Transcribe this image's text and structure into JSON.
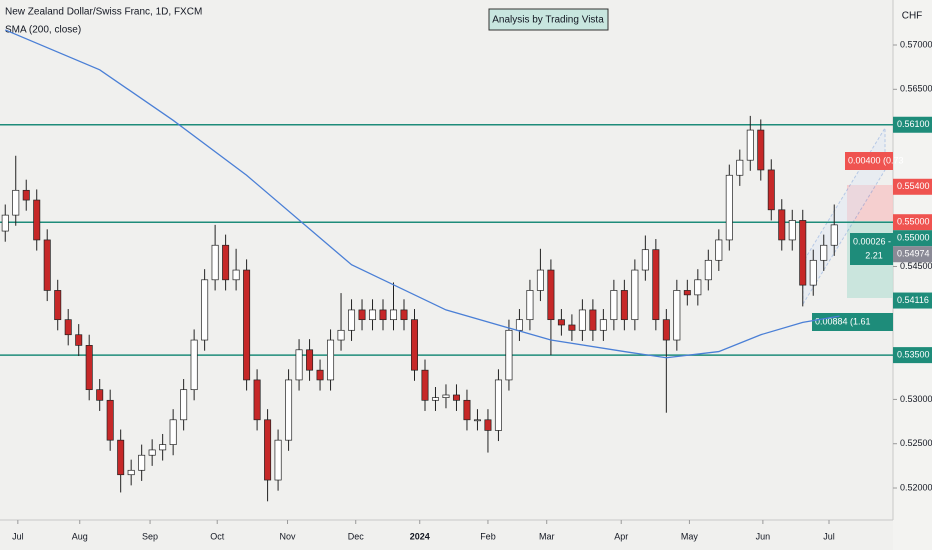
{
  "chart_data": {
    "type": "candlestick",
    "title": "New Zealand Dollar/Swiss Franc, 1D, FXCM",
    "subtitle": "SMA (200, close)",
    "annotation": "Analysis by Trading Vista",
    "currency": "CHF",
    "up_color": "#ffffff",
    "down_color": "#c62828",
    "open": [
      0.549,
      0.5508,
      0.5536,
      0.5525,
      0.548,
      0.5423,
      0.539,
      0.5373,
      0.5361,
      0.5311,
      0.5299,
      0.5254,
      0.5215,
      0.522,
      0.5237,
      0.5243,
      0.5249,
      0.5277,
      0.5311,
      0.5367,
      0.5435,
      0.5474,
      0.5435,
      0.5446,
      0.5322,
      0.5277,
      0.5209,
      0.5254,
      0.5322,
      0.5356,
      0.5333,
      0.5322,
      0.5367,
      0.5378,
      0.5401,
      0.539,
      0.5401,
      0.539,
      0.5401,
      0.539,
      0.5333,
      0.5299,
      0.5302,
      0.5305,
      0.5299,
      0.5277,
      0.5277,
      0.5265,
      0.5322,
      0.5378,
      0.539,
      0.5423,
      0.5446,
      0.539,
      0.5384,
      0.5378,
      0.5401,
      0.5378,
      0.539,
      0.5423,
      0.539,
      0.5446,
      0.5469,
      0.539,
      0.5367,
      0.5423,
      0.5418,
      0.5435,
      0.5457,
      0.548,
      0.5553,
      0.557,
      0.5604,
      0.5559,
      0.5514,
      0.548,
      0.5502,
      0.5429,
      0.5457,
      0.5474
    ],
    "high": [
      0.552,
      0.5575,
      0.5548,
      0.5537,
      0.5492,
      0.5435,
      0.5402,
      0.5385,
      0.5373,
      0.5323,
      0.5311,
      0.5266,
      0.5232,
      0.5249,
      0.5255,
      0.5261,
      0.5289,
      0.5323,
      0.5379,
      0.5447,
      0.5497,
      0.5486,
      0.547,
      0.5458,
      0.5334,
      0.5289,
      0.5266,
      0.5334,
      0.5368,
      0.5368,
      0.5345,
      0.5379,
      0.542,
      0.5413,
      0.5413,
      0.5413,
      0.5413,
      0.5432,
      0.5413,
      0.5402,
      0.5345,
      0.5314,
      0.5317,
      0.5317,
      0.5311,
      0.5289,
      0.5289,
      0.5334,
      0.539,
      0.5402,
      0.5435,
      0.547,
      0.5458,
      0.5402,
      0.5396,
      0.5413,
      0.5413,
      0.5402,
      0.5435,
      0.5435,
      0.5458,
      0.5485,
      0.5481,
      0.5402,
      0.5435,
      0.5435,
      0.5447,
      0.5469,
      0.5492,
      0.5565,
      0.5582,
      0.562,
      0.5616,
      0.5571,
      0.5526,
      0.5514,
      0.5514,
      0.5469,
      0.5486,
      0.552
    ],
    "low": [
      0.5478,
      0.5496,
      0.5513,
      0.5468,
      0.5411,
      0.5378,
      0.5361,
      0.5349,
      0.5299,
      0.5287,
      0.5242,
      0.5195,
      0.5203,
      0.5208,
      0.5225,
      0.5231,
      0.5237,
      0.5265,
      0.5299,
      0.5355,
      0.5423,
      0.5423,
      0.5423,
      0.531,
      0.5265,
      0.5185,
      0.5197,
      0.5242,
      0.531,
      0.5321,
      0.531,
      0.531,
      0.5355,
      0.5366,
      0.5378,
      0.5378,
      0.5378,
      0.5378,
      0.5378,
      0.5321,
      0.5287,
      0.5287,
      0.529,
      0.5287,
      0.5265,
      0.5265,
      0.524,
      0.5253,
      0.531,
      0.5366,
      0.5378,
      0.5411,
      0.535,
      0.5372,
      0.5366,
      0.5366,
      0.5366,
      0.5366,
      0.5378,
      0.5378,
      0.5378,
      0.5434,
      0.5378,
      0.5285,
      0.5355,
      0.5406,
      0.5406,
      0.5423,
      0.5445,
      0.5468,
      0.5541,
      0.5558,
      0.5547,
      0.5502,
      0.5468,
      0.5468,
      0.5405,
      0.5417,
      0.5445,
      0.5462
    ],
    "close": [
      0.5508,
      0.5536,
      0.5525,
      0.548,
      0.5423,
      0.539,
      0.5373,
      0.5361,
      0.5311,
      0.5299,
      0.5254,
      0.5215,
      0.522,
      0.5237,
      0.5243,
      0.5249,
      0.5277,
      0.5311,
      0.5367,
      0.5435,
      0.5474,
      0.5435,
      0.5446,
      0.5322,
      0.5277,
      0.5209,
      0.5254,
      0.5322,
      0.5356,
      0.5333,
      0.5322,
      0.5367,
      0.5378,
      0.5401,
      0.539,
      0.5401,
      0.539,
      0.5401,
      0.539,
      0.5333,
      0.5299,
      0.5302,
      0.5305,
      0.5299,
      0.5277,
      0.5277,
      0.5265,
      0.5322,
      0.5378,
      0.539,
      0.5423,
      0.5446,
      0.539,
      0.5384,
      0.5378,
      0.5401,
      0.5378,
      0.539,
      0.5423,
      0.539,
      0.5446,
      0.5469,
      0.539,
      0.5367,
      0.5423,
      0.5418,
      0.5435,
      0.5457,
      0.548,
      0.5553,
      0.557,
      0.5604,
      0.5559,
      0.5514,
      0.548,
      0.5502,
      0.5429,
      0.5457,
      0.5474,
      0.5497
    ],
    "sma": {
      "color": "#4a7fd6",
      "x": [
        0,
        9,
        16,
        23,
        33,
        42,
        52,
        59,
        63,
        68,
        72,
        76,
        79.5
      ],
      "values": [
        0.5717,
        0.5672,
        0.5615,
        0.5553,
        0.5452,
        0.5401,
        0.5367,
        0.5354,
        0.5347,
        0.5354,
        0.5373,
        0.5387,
        0.5394
      ]
    },
    "levels": [
      {
        "value": 0.561,
        "label": "0.56100"
      },
      {
        "value": 0.55,
        "label": "0.55000"
      },
      {
        "value": 0.535,
        "label": "0.53500"
      }
    ],
    "level_color": "#1e8c7a",
    "price_labels": [
      {
        "value": 0.554,
        "label": "0.55400",
        "color": "#ef5350"
      },
      {
        "value": 0.55,
        "label": "0.55000",
        "color": "#ef5350"
      },
      {
        "value": 0.55,
        "label": "0.55000",
        "color": "#1e8c7a"
      },
      {
        "value": 0.54974,
        "label": "0.54974",
        "color": "#8a8a96"
      },
      {
        "value": 0.54116,
        "label": "0.54116",
        "color": "#1e8c7a"
      }
    ],
    "position_labels": [
      "0.00400 (0.73",
      "0.00026 - 2",
      "2.21",
      "0.00884 (1.61"
    ],
    "xlim": [
      -0.5,
      84.6
    ],
    "ylim": [
      0.51639,
      0.57508
    ],
    "xticks": [
      {
        "value": 1.2,
        "label": "Jul"
      },
      {
        "value": 7.1,
        "label": "Aug"
      },
      {
        "value": 13.8,
        "label": "Sep"
      },
      {
        "value": 20.2,
        "label": "Oct"
      },
      {
        "value": 26.9,
        "label": "Nov"
      },
      {
        "value": 33.4,
        "label": "Dec"
      },
      {
        "value": 39.5,
        "label": "2024"
      },
      {
        "value": 46,
        "label": "Feb"
      },
      {
        "value": 51.6,
        "label": "Mar"
      },
      {
        "value": 58.7,
        "label": "Apr"
      },
      {
        "value": 65.2,
        "label": "May"
      },
      {
        "value": 72.2,
        "label": "Jun"
      },
      {
        "value": 78.5,
        "label": "Jul"
      }
    ],
    "yticks": [
      {
        "value": 0.52,
        "label": "0.52000"
      },
      {
        "value": 0.525,
        "label": "0.52500"
      },
      {
        "value": 0.53,
        "label": "0.53000"
      },
      {
        "value": 0.545,
        "label": "0.54500"
      },
      {
        "value": 0.565,
        "label": "0.56500"
      },
      {
        "value": 0.57,
        "label": "0.57000"
      }
    ]
  }
}
